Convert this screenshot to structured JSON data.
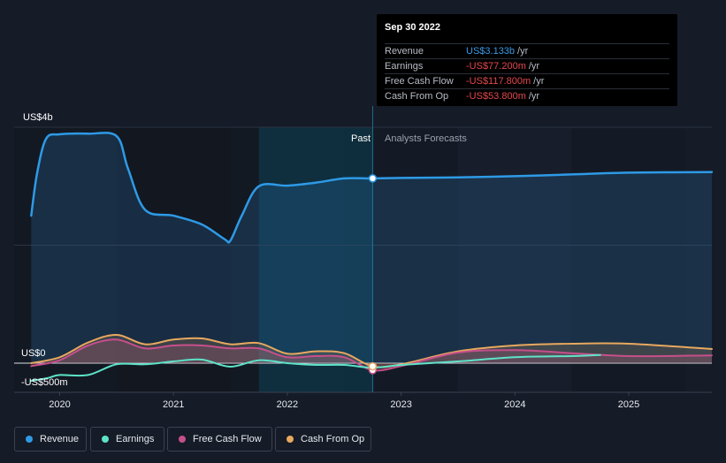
{
  "tooltip": {
    "date": "Sep 30 2022",
    "rows": [
      {
        "name": "Revenue",
        "value": "US$3.133b",
        "unit": "/yr",
        "color": "#3b9be6"
      },
      {
        "name": "Earnings",
        "value": "-US$77.200m",
        "unit": "/yr",
        "color": "#e5484d"
      },
      {
        "name": "Free Cash Flow",
        "value": "-US$117.800m",
        "unit": "/yr",
        "color": "#e5484d"
      },
      {
        "name": "Cash From Op",
        "value": "-US$53.800m",
        "unit": "/yr",
        "color": "#e5484d"
      }
    ]
  },
  "labels": {
    "past": "Past",
    "forecast": "Analysts Forecasts"
  },
  "legend": [
    {
      "name": "Revenue",
      "color": "#2e9ae6"
    },
    {
      "name": "Earnings",
      "color": "#5ee3c8"
    },
    {
      "name": "Free Cash Flow",
      "color": "#c64f8c"
    },
    {
      "name": "Cash From Op",
      "color": "#e8a85f"
    }
  ],
  "chart_data": {
    "type": "line",
    "y_tick_labels": [
      "US$4b",
      "US$0",
      "-US$500m"
    ],
    "x_tick_labels": [
      "2020",
      "2021",
      "2022",
      "2023",
      "2024",
      "2025"
    ],
    "ylim": [
      -500,
      4000
    ],
    "xlim": [
      2019.6,
      2025.73
    ],
    "past_until": 2022.75,
    "highlight_start": 2021.75,
    "series": [
      {
        "name": "Revenue",
        "color": "#2e9ae6",
        "points": [
          [
            2019.75,
            2500
          ],
          [
            2019.8,
            3200
          ],
          [
            2019.88,
            3800
          ],
          [
            2020.0,
            3880
          ],
          [
            2020.25,
            3890
          ],
          [
            2020.5,
            3850
          ],
          [
            2020.6,
            3300
          ],
          [
            2020.75,
            2600
          ],
          [
            2021.0,
            2500
          ],
          [
            2021.25,
            2350
          ],
          [
            2021.45,
            2100
          ],
          [
            2021.5,
            2080
          ],
          [
            2021.6,
            2500
          ],
          [
            2021.75,
            3000
          ],
          [
            2022.0,
            3010
          ],
          [
            2022.25,
            3060
          ],
          [
            2022.5,
            3133
          ],
          [
            2022.75,
            3133
          ],
          [
            2023.0,
            3140
          ],
          [
            2023.5,
            3150
          ],
          [
            2024.0,
            3170
          ],
          [
            2024.5,
            3200
          ],
          [
            2025.0,
            3230
          ],
          [
            2025.73,
            3240
          ]
        ]
      },
      {
        "name": "Earnings",
        "color": "#5ee3c8",
        "points": [
          [
            2019.75,
            -300
          ],
          [
            2019.9,
            -250
          ],
          [
            2020.0,
            -200
          ],
          [
            2020.25,
            -200
          ],
          [
            2020.5,
            -20
          ],
          [
            2020.75,
            -20
          ],
          [
            2021.0,
            30
          ],
          [
            2021.25,
            60
          ],
          [
            2021.5,
            -60
          ],
          [
            2021.75,
            50
          ],
          [
            2022.0,
            0
          ],
          [
            2022.25,
            -30
          ],
          [
            2022.5,
            -30
          ],
          [
            2022.75,
            -77
          ],
          [
            2023.0,
            -30
          ],
          [
            2023.5,
            30
          ],
          [
            2024.0,
            100
          ],
          [
            2024.5,
            120
          ],
          [
            2024.75,
            140
          ]
        ]
      },
      {
        "name": "Free Cash Flow",
        "color": "#c64f8c",
        "points": [
          [
            2019.75,
            -50
          ],
          [
            2020.0,
            50
          ],
          [
            2020.25,
            300
          ],
          [
            2020.5,
            400
          ],
          [
            2020.75,
            250
          ],
          [
            2021.0,
            300
          ],
          [
            2021.25,
            300
          ],
          [
            2021.5,
            250
          ],
          [
            2021.75,
            250
          ],
          [
            2022.0,
            100
          ],
          [
            2022.25,
            120
          ],
          [
            2022.5,
            100
          ],
          [
            2022.75,
            -118
          ],
          [
            2023.0,
            -50
          ],
          [
            2023.5,
            180
          ],
          [
            2024.0,
            220
          ],
          [
            2024.5,
            170
          ],
          [
            2025.0,
            120
          ],
          [
            2025.73,
            130
          ]
        ]
      },
      {
        "name": "Cash From Op",
        "color": "#e8a85f",
        "points": [
          [
            2019.75,
            0
          ],
          [
            2020.0,
            100
          ],
          [
            2020.25,
            350
          ],
          [
            2020.5,
            480
          ],
          [
            2020.75,
            320
          ],
          [
            2021.0,
            400
          ],
          [
            2021.25,
            420
          ],
          [
            2021.5,
            320
          ],
          [
            2021.75,
            340
          ],
          [
            2022.0,
            160
          ],
          [
            2022.25,
            200
          ],
          [
            2022.5,
            170
          ],
          [
            2022.75,
            -54
          ],
          [
            2023.0,
            -20
          ],
          [
            2023.5,
            200
          ],
          [
            2024.0,
            300
          ],
          [
            2024.5,
            330
          ],
          [
            2025.0,
            330
          ],
          [
            2025.73,
            240
          ]
        ]
      }
    ]
  }
}
